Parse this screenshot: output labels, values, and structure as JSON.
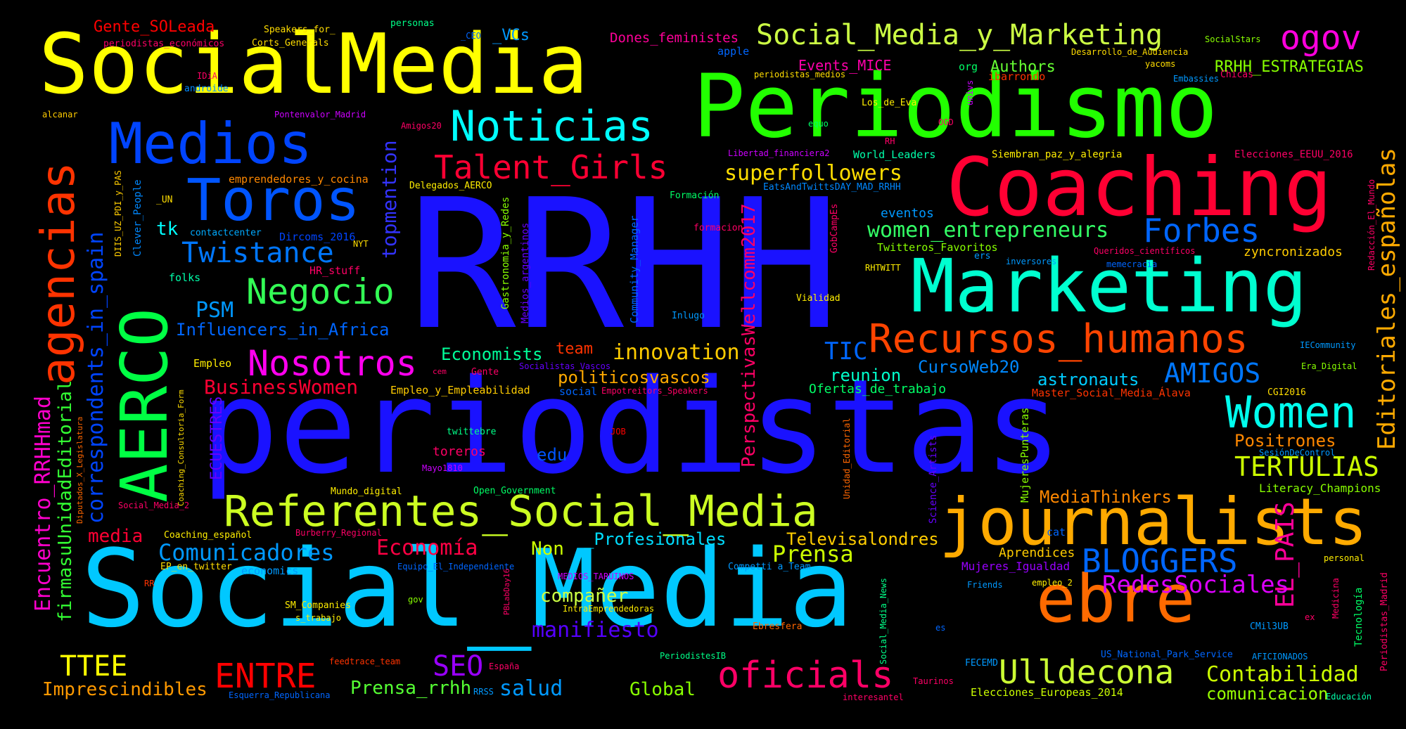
{
  "words": [
    {
      "text": "RRHH",
      "color": "#1a12ff"
    },
    {
      "text": "periodistas",
      "color": "#1a12ff"
    },
    {
      "text": "Social_Media",
      "color": "#00c8ff"
    },
    {
      "text": "SocialMedia",
      "color": "#ffff00"
    },
    {
      "text": "Periodismo",
      "color": "#22ff00"
    },
    {
      "text": "Coaching",
      "color": "#ff0033"
    },
    {
      "text": "Marketing",
      "color": "#00ffd0"
    },
    {
      "text": "journalists",
      "color": "#ffaa00"
    },
    {
      "text": "ebre",
      "color": "#ff6a00"
    },
    {
      "text": "Referentes_Social_Media",
      "color": "#ccff22"
    },
    {
      "text": "AERCO",
      "color": "#00ff44"
    },
    {
      "text": "Medios",
      "color": "#0044ff"
    },
    {
      "text": "Toros",
      "color": "#0055ff"
    },
    {
      "text": "agencias",
      "color": "#ff3300"
    },
    {
      "text": "Noticias",
      "color": "#00ffff"
    },
    {
      "text": "Recursos_humanos",
      "color": "#ff4400"
    },
    {
      "text": "Women",
      "color": "#00ffee"
    },
    {
      "text": "Social_Media_y_Marketing",
      "color": "#ccff44"
    },
    {
      "text": "ogov",
      "color": "#ff00dd"
    },
    {
      "text": "Talent_Girls",
      "color": "#ff0033"
    },
    {
      "text": "Negocio",
      "color": "#33ff55"
    },
    {
      "text": "Nosotros",
      "color": "#ff00ee"
    },
    {
      "text": "Twistance",
      "color": "#0077ff"
    },
    {
      "text": "Forbes",
      "color": "#0066ff"
    },
    {
      "text": "Ulldecona",
      "color": "#ccff33"
    },
    {
      "text": "oficials",
      "color": "#ff0066"
    },
    {
      "text": "BLOGGERS",
      "color": "#0066ff"
    },
    {
      "text": "ENTRE",
      "color": "#ff0000"
    },
    {
      "text": "Comunicadores",
      "color": "#0099ff"
    },
    {
      "text": "Economía",
      "color": "#ff0044"
    },
    {
      "text": "Prensa",
      "color": "#ccff00"
    },
    {
      "text": "innovation",
      "color": "#ffcc00"
    },
    {
      "text": "superfollowers",
      "color": "#ffdd00"
    },
    {
      "text": "women_entrepreneurs",
      "color": "#33ff66"
    },
    {
      "text": "AMIGOS",
      "color": "#0077ff"
    },
    {
      "text": "TERTULIAS",
      "color": "#ccff00"
    },
    {
      "text": "Editoriales_españolas",
      "color": "#ffaa00"
    },
    {
      "text": "EL_PAIS",
      "color": "#ff0099"
    },
    {
      "text": "RedesSociales",
      "color": "#dd00ff"
    },
    {
      "text": "Contabilidad",
      "color": "#ccff00"
    },
    {
      "text": "comunicacion",
      "color": "#99ff00"
    },
    {
      "text": "correspondents_in_spain",
      "color": "#0044ff"
    },
    {
      "text": "Encuentro_RRHHmad",
      "color": "#ff00cc"
    },
    {
      "text": "firmasuUnidadEditorial",
      "color": "#33ff33"
    },
    {
      "text": "topmention",
      "color": "#3333ff"
    },
    {
      "text": "PerspectivasWellcomm2017",
      "color": "#ff0066"
    },
    {
      "text": "TTEE",
      "color": "#ffff00"
    },
    {
      "text": "Imprescindibles",
      "color": "#ff9900"
    },
    {
      "text": "SEO",
      "color": "#9900ff"
    },
    {
      "text": "salud",
      "color": "#0099ff"
    },
    {
      "text": "Global",
      "color": "#88ff00"
    },
    {
      "text": "Prensa_rrhh",
      "color": "#55ff33"
    },
    {
      "text": "manifiesto",
      "color": "#5500ff"
    },
    {
      "text": "compañer",
      "color": "#ccff44"
    },
    {
      "text": "Non",
      "color": "#ccff00"
    },
    {
      "text": "_Profesionales",
      "color": "#00ddff"
    },
    {
      "text": "Televisalondres",
      "color": "#ffcc00"
    },
    {
      "text": "media",
      "color": "#ff0033"
    },
    {
      "text": "MediaThinkers",
      "color": "#ff8800"
    },
    {
      "text": "Positrones",
      "color": "#ff8800"
    },
    {
      "text": "BusinessWomen",
      "color": "#ff0033"
    },
    {
      "text": "Economists",
      "color": "#00ff99"
    },
    {
      "text": "politicosvascos",
      "color": "#ffaa00"
    },
    {
      "text": "TIC",
      "color": "#0066ff"
    },
    {
      "text": "reunion",
      "color": "#00ffcc"
    },
    {
      "text": "CursoWeb20",
      "color": "#0088ff"
    },
    {
      "text": "astronauts",
      "color": "#00ccff"
    },
    {
      "text": "PSM",
      "color": "#0099ff"
    },
    {
      "text": "Influencers_in_Africa",
      "color": "#0066ff"
    },
    {
      "text": "team",
      "color": "#ff3300"
    },
    {
      "text": "Gente_SOLeada",
      "color": "#ff0000"
    },
    {
      "text": "_VCs",
      "color": "#0099ff"
    },
    {
      "text": "Dones_feministes",
      "color": "#ff0099"
    },
    {
      "text": "Authors",
      "color": "#66ff33"
    },
    {
      "text": "RRHH_ESTRATEGIAS",
      "color": "#88ff00"
    },
    {
      "text": "Events_MICE",
      "color": "#ff00aa"
    },
    {
      "text": "eventos",
      "color": "#0099ff"
    },
    {
      "text": "tk",
      "color": "#00ffff"
    },
    {
      "text": "ECUESTRES",
      "color": "#6600ff"
    },
    {
      "text": "edu",
      "color": "#0055ff"
    },
    {
      "text": "toreros",
      "color": "#ff0066"
    },
    {
      "text": "zyncronizados",
      "color": "#ffcc00"
    },
    {
      "text": "Literacy_Champions",
      "color": "#88ff00"
    },
    {
      "text": "Ofertas_de_trabajo",
      "color": "#00ff66"
    },
    {
      "text": "Mujeres_Igualdad",
      "color": "#9900ff"
    },
    {
      "text": "Aprendices",
      "color": "#ffcc00"
    },
    {
      "text": "Speakers_for_",
      "color": "#ffdd00"
    },
    {
      "text": "Corts_Generals",
      "color": "#ffdd00"
    },
    {
      "text": "periodistas_económicos",
      "color": "#ff0066"
    },
    {
      "text": "personas",
      "color": "#00ff88"
    },
    {
      "text": "apple",
      "color": "#0066ff"
    },
    {
      "text": "androide",
      "color": "#0088ff"
    },
    {
      "text": "IDiA",
      "color": "#ff0066"
    },
    {
      "text": "alcanar",
      "color": "#ffcc00"
    },
    {
      "text": "Pontenvalor_Madrid",
      "color": "#cc00ff"
    },
    {
      "text": "Amigos20",
      "color": "#ff0066"
    },
    {
      "text": "emprendedores_y_cocina",
      "color": "#ff8800"
    },
    {
      "text": "Delegados_AERCO",
      "color": "#ffee00"
    },
    {
      "text": "Dircoms_2016",
      "color": "#0044ff"
    },
    {
      "text": "contactcenter",
      "color": "#00aaff"
    },
    {
      "text": "folks",
      "color": "#00ffaa"
    },
    {
      "text": "HR_stuff",
      "color": "#ff0066"
    },
    {
      "text": "NYT",
      "color": "#ffdd00"
    },
    {
      "text": "Clever_People",
      "color": "#0088ff"
    },
    {
      "text": "DIIS_UZ_PDI_y_PAS",
      "color": "#ffcc00"
    },
    {
      "text": "_UN",
      "color": "#ffdd00"
    },
    {
      "text": "Gastronomia_y_Redes",
      "color": "#88ff00"
    },
    {
      "text": "Medios_argentinos",
      "color": "#6600ff"
    },
    {
      "text": "Community_Manager",
      "color": "#0066ff"
    },
    {
      "text": "Formación",
      "color": "#00ff66"
    },
    {
      "text": "formacion",
      "color": "#ff0066"
    },
    {
      "text": "Inlugo",
      "color": "#0099ff"
    },
    {
      "text": "Vialidad",
      "color": "#ffee00"
    },
    {
      "text": "GobCampEs",
      "color": "#ff0066"
    },
    {
      "text": "Twitteros_Favoritos",
      "color": "#88ff00"
    },
    {
      "text": "RHTWITT",
      "color": "#ffee00"
    },
    {
      "text": "ers",
      "color": "#0099ff"
    },
    {
      "text": "inversores",
      "color": "#0099ff"
    },
    {
      "text": "memecracia",
      "color": "#0066ff"
    },
    {
      "text": "Queridos_científicos",
      "color": "#ff0066"
    },
    {
      "text": "Siembran_paz_y_alegria",
      "color": "#ffee00"
    },
    {
      "text": "Elecciones_EEUU_2016",
      "color": "#ff0066"
    },
    {
      "text": "World_Leaders",
      "color": "#00ffaa"
    },
    {
      "text": "Libertad_financiera2",
      "color": "#cc00ff"
    },
    {
      "text": "EatsAndTwittsDAY_MAD_RRHH",
      "color": "#0088ff"
    },
    {
      "text": "Redacción_El_Mundo",
      "color": "#ff0066"
    },
    {
      "text": "Los_de_Eva",
      "color": "#ffee00"
    },
    {
      "text": "OGD",
      "color": "#ff0066"
    },
    {
      "text": "equo",
      "color": "#00ff66"
    },
    {
      "text": "RH",
      "color": "#ff0066"
    },
    {
      "text": "univs",
      "color": "#cc00ff"
    },
    {
      "text": "ibarrondo",
      "color": "#ff3300"
    },
    {
      "text": "org",
      "color": "#00ff66"
    },
    {
      "text": "periodistas_medios",
      "color": "#ffdd00"
    },
    {
      "text": "yacoms",
      "color": "#ffdd00"
    },
    {
      "text": "Chicas",
      "color": "#ff0066"
    },
    {
      "text": "Embassies",
      "color": "#0099ff"
    },
    {
      "text": "Desarrollo_de_Audiencia",
      "color": "#ffdd00"
    },
    {
      "text": "SocialStars",
      "color": "#88ff00"
    },
    {
      "text": "_CEO",
      "color": "#0066ff"
    },
    {
      "text": "IECommunity",
      "color": "#0099ff"
    },
    {
      "text": "Era_Digital",
      "color": "#88ff00"
    },
    {
      "text": "CGI2016",
      "color": "#ffdd00"
    },
    {
      "text": "Master_Social_Media_Álava",
      "color": "#ff3300"
    },
    {
      "text": "SesiónDeControl",
      "color": "#0099ff"
    },
    {
      "text": "Empleo",
      "color": "#ffee00"
    },
    {
      "text": "Empleo_y_Empleabilidad",
      "color": "#ffcc00"
    },
    {
      "text": "Gente",
      "color": "#ff0066"
    },
    {
      "text": "cem",
      "color": "#ff0066"
    },
    {
      "text": "Socialistas_Vascos",
      "color": "#6600ff"
    },
    {
      "text": "Empotreitors_Speakers",
      "color": "#ff0066"
    },
    {
      "text": "social",
      "color": "#0066ff"
    },
    {
      "text": "twittebre",
      "color": "#00ff88"
    },
    {
      "text": "JOB",
      "color": "#ff0000"
    },
    {
      "text": "Mayo1810",
      "color": "#cc00ff"
    },
    {
      "text": "Mundo_digital",
      "color": "#ffee00"
    },
    {
      "text": "Open_Government",
      "color": "#00ff66"
    },
    {
      "text": "Social_Media_2",
      "color": "#ff0066"
    },
    {
      "text": "Burberry_Regional",
      "color": "#ff0066"
    },
    {
      "text": "Coaching_español",
      "color": "#ffee00"
    },
    {
      "text": "EP_en_twitter",
      "color": "#ffdd00"
    },
    {
      "text": "economics",
      "color": "#0099ff"
    },
    {
      "text": "Equipo_El_Independiente",
      "color": "#0066ff"
    },
    {
      "text": "MEDIOS_TARUINOS",
      "color": "#cc00ff"
    },
    {
      "text": "Competti a_Team",
      "color": "#0099ff"
    },
    {
      "text": "cat",
      "color": "#0066ff"
    },
    {
      "text": "personal",
      "color": "#ffee00"
    },
    {
      "text": "empleo_2",
      "color": "#ffee00"
    },
    {
      "text": "RR",
      "color": "#ff3300"
    },
    {
      "text": "gov",
      "color": "#88ff00"
    },
    {
      "text": "SM_Companies",
      "color": "#ffee00"
    },
    {
      "text": "s_trabajo",
      "color": "#ffee00"
    },
    {
      "text": "IntraEmprendedoras",
      "color": "#ffee00"
    },
    {
      "text": "PBLabDay16",
      "color": "#ff0066"
    },
    {
      "text": "Ebresfera",
      "color": "#ff6600"
    },
    {
      "text": "PeriodistesIB",
      "color": "#00ff88"
    },
    {
      "text": "España",
      "color": "#ff0066"
    },
    {
      "text": "feedtrace_team",
      "color": "#ff3300"
    },
    {
      "text": "RRSS",
      "color": "#0099ff"
    },
    {
      "text": "Esquerra_Republicana",
      "color": "#0066ff"
    },
    {
      "text": "Friends",
      "color": "#0099ff"
    },
    {
      "text": "Taurinos",
      "color": "#ff0066"
    },
    {
      "text": "FECEMD",
      "color": "#0099ff"
    },
    {
      "text": "es",
      "color": "#0066ff"
    },
    {
      "text": "interesantel",
      "color": "#ff0066"
    },
    {
      "text": "Elecciones_Europeas_2014",
      "color": "#ccff00"
    },
    {
      "text": "US_National_Park_Service",
      "color": "#0066ff"
    },
    {
      "text": "AFICIONADOS",
      "color": "#0099ff"
    },
    {
      "text": "CMil3UB",
      "color": "#0099ff"
    },
    {
      "text": "ex",
      "color": "#ff0066"
    },
    {
      "text": "Educación",
      "color": "#00ffaa"
    },
    {
      "text": "Tecnología",
      "color": "#00ff66"
    },
    {
      "text": "Medicina",
      "color": "#ff0066"
    },
    {
      "text": "Periodistas_Madrid",
      "color": "#ff0066"
    },
    {
      "text": "Social_Media_News",
      "color": "#00ff88"
    },
    {
      "text": "Unidad_Editorial",
      "color": "#ff6600"
    },
    {
      "text": "Science_Artists",
      "color": "#6600ff"
    },
    {
      "text": "MujeresPunteras",
      "color": "#88ff00"
    },
    {
      "text": "Coaching_Consultoria_Form",
      "color": "#ffdd00"
    },
    {
      "text": "Diputados_X_Legislatura",
      "color": "#ff6600"
    }
  ]
}
